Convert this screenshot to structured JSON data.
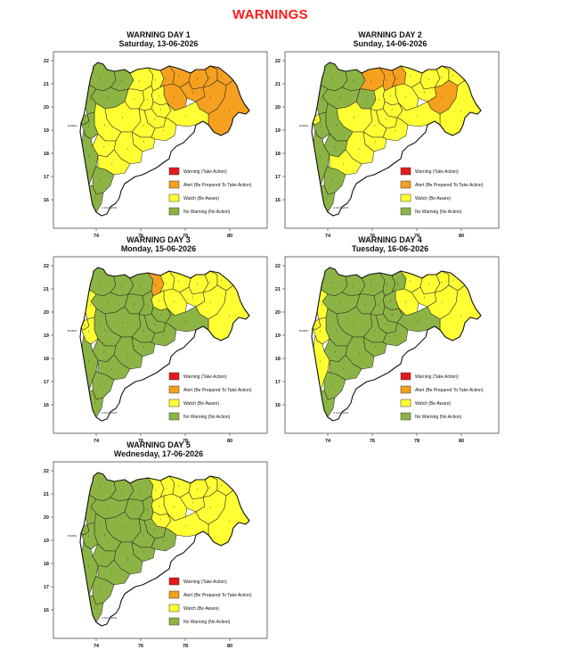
{
  "title": "WARNINGS",
  "levels": {
    "red": {
      "label": "Warning (Take Action)",
      "color": "#e41a1a"
    },
    "orange": {
      "label": "Alert (Be Prepared To Take Action)",
      "color": "#f5a01e"
    },
    "yellow": {
      "label": "Watch (Be Aware)",
      "color": "#ffff33"
    },
    "green": {
      "label": "No Warning (No Action)",
      "color": "#8cb444"
    }
  },
  "axes": {
    "x_ticks": [
      "74",
      "76",
      "78",
      "80"
    ],
    "y_ticks": [
      "22",
      "21",
      "20",
      "19",
      "18",
      "17",
      "16"
    ]
  },
  "map_labels": [
    "MUMBAI",
    "of KOLHAPUR"
  ],
  "panels": [
    {
      "heading": "WARNING DAY 1",
      "date": "Saturday, 13-06-2026",
      "districts": {
        "north-west": "green",
        "dhule": "green",
        "jalgaon": "yellow",
        "buldhana": "yellow",
        "akola": "orange",
        "amravati": "orange",
        "nagpur": "orange",
        "wardha": "orange",
        "bhandara": "orange",
        "gondia": "orange",
        "chandrapur": "orange",
        "gadchiroli": "orange",
        "yavatmal": "orange",
        "washim": "yellow",
        "hingoli": "yellow",
        "nanded": "yellow",
        "aurangabad": "yellow",
        "jalna": "yellow",
        "parbhani": "yellow",
        "nashik": "green",
        "thane": "green",
        "mumbai": "green",
        "raigad": "green",
        "pune": "yellow",
        "ahmednagar": "yellow",
        "beed": "yellow",
        "latur": "yellow",
        "osmanabad": "yellow",
        "solapur": "yellow",
        "satara": "yellow",
        "ratnagiri": "green",
        "sangli": "yellow",
        "kolhapur": "green",
        "sindhudurg": "green"
      }
    },
    {
      "heading": "WARNING DAY 2",
      "date": "Sunday, 14-06-2026",
      "districts": {
        "north-west": "green",
        "dhule": "green",
        "jalgaon": "orange",
        "buldhana": "orange",
        "akola": "orange",
        "amravati": "yellow",
        "nagpur": "yellow",
        "wardha": "yellow",
        "bhandara": "yellow",
        "gondia": "yellow",
        "chandrapur": "orange",
        "gadchiroli": "yellow",
        "yavatmal": "yellow",
        "washim": "yellow",
        "hingoli": "yellow",
        "nanded": "yellow",
        "aurangabad": "green",
        "jalna": "yellow",
        "parbhani": "yellow",
        "nashik": "green",
        "thane": "green",
        "mumbai": "yellow",
        "raigad": "green",
        "pune": "green",
        "ahmednagar": "yellow",
        "beed": "yellow",
        "latur": "yellow",
        "osmanabad": "yellow",
        "solapur": "yellow",
        "satara": "green",
        "ratnagiri": "green",
        "sangli": "yellow",
        "kolhapur": "green",
        "sindhudurg": "green"
      }
    },
    {
      "heading": "WARNING DAY 3",
      "date": "Monday, 15-06-2026",
      "districts": {
        "north-west": "green",
        "dhule": "green",
        "jalgaon": "green",
        "buldhana": "orange",
        "akola": "yellow",
        "amravati": "yellow",
        "nagpur": "yellow",
        "wardha": "yellow",
        "bhandara": "yellow",
        "gondia": "yellow",
        "chandrapur": "yellow",
        "gadchiroli": "yellow",
        "yavatmal": "yellow",
        "washim": "yellow",
        "hingoli": "green",
        "nanded": "green",
        "aurangabad": "green",
        "jalna": "green",
        "parbhani": "green",
        "nashik": "green",
        "thane": "yellow",
        "mumbai": "yellow",
        "raigad": "yellow",
        "pune": "green",
        "ahmednagar": "green",
        "beed": "green",
        "latur": "green",
        "osmanabad": "green",
        "solapur": "green",
        "satara": "green",
        "ratnagiri": "green",
        "sangli": "green",
        "kolhapur": "green",
        "sindhudurg": "green"
      }
    },
    {
      "heading": "WARNING DAY 4",
      "date": "Tuesday, 16-06-2026",
      "districts": {
        "north-west": "green",
        "dhule": "green",
        "jalgaon": "green",
        "buldhana": "green",
        "akola": "green",
        "amravati": "yellow",
        "nagpur": "yellow",
        "wardha": "yellow",
        "bhandara": "yellow",
        "gondia": "yellow",
        "chandrapur": "yellow",
        "gadchiroli": "yellow",
        "yavatmal": "yellow",
        "washim": "green",
        "hingoli": "green",
        "nanded": "green",
        "aurangabad": "green",
        "jalna": "green",
        "parbhani": "green",
        "nashik": "green",
        "thane": "yellow",
        "mumbai": "yellow",
        "raigad": "yellow",
        "pune": "green",
        "ahmednagar": "green",
        "beed": "green",
        "latur": "green",
        "osmanabad": "green",
        "solapur": "green",
        "satara": "green",
        "ratnagiri": "yellow",
        "sangli": "green",
        "kolhapur": "green",
        "sindhudurg": "green"
      }
    },
    {
      "heading": "WARNING DAY 5",
      "date": "Wednesday, 17-06-2026",
      "districts": {
        "north-west": "green",
        "dhule": "green",
        "jalgaon": "green",
        "buldhana": "yellow",
        "akola": "yellow",
        "amravati": "yellow",
        "nagpur": "yellow",
        "wardha": "yellow",
        "bhandara": "yellow",
        "gondia": "yellow",
        "chandrapur": "yellow",
        "gadchiroli": "yellow",
        "yavatmal": "yellow",
        "washim": "yellow",
        "hingoli": "yellow",
        "nanded": "yellow",
        "aurangabad": "green",
        "jalna": "green",
        "parbhani": "green",
        "nashik": "green",
        "thane": "green",
        "mumbai": "green",
        "raigad": "green",
        "pune": "green",
        "ahmednagar": "green",
        "beed": "green",
        "latur": "green",
        "osmanabad": "green",
        "solapur": "green",
        "satara": "green",
        "ratnagiri": "green",
        "sangli": "green",
        "kolhapur": "green",
        "sindhudurg": "green"
      }
    }
  ]
}
